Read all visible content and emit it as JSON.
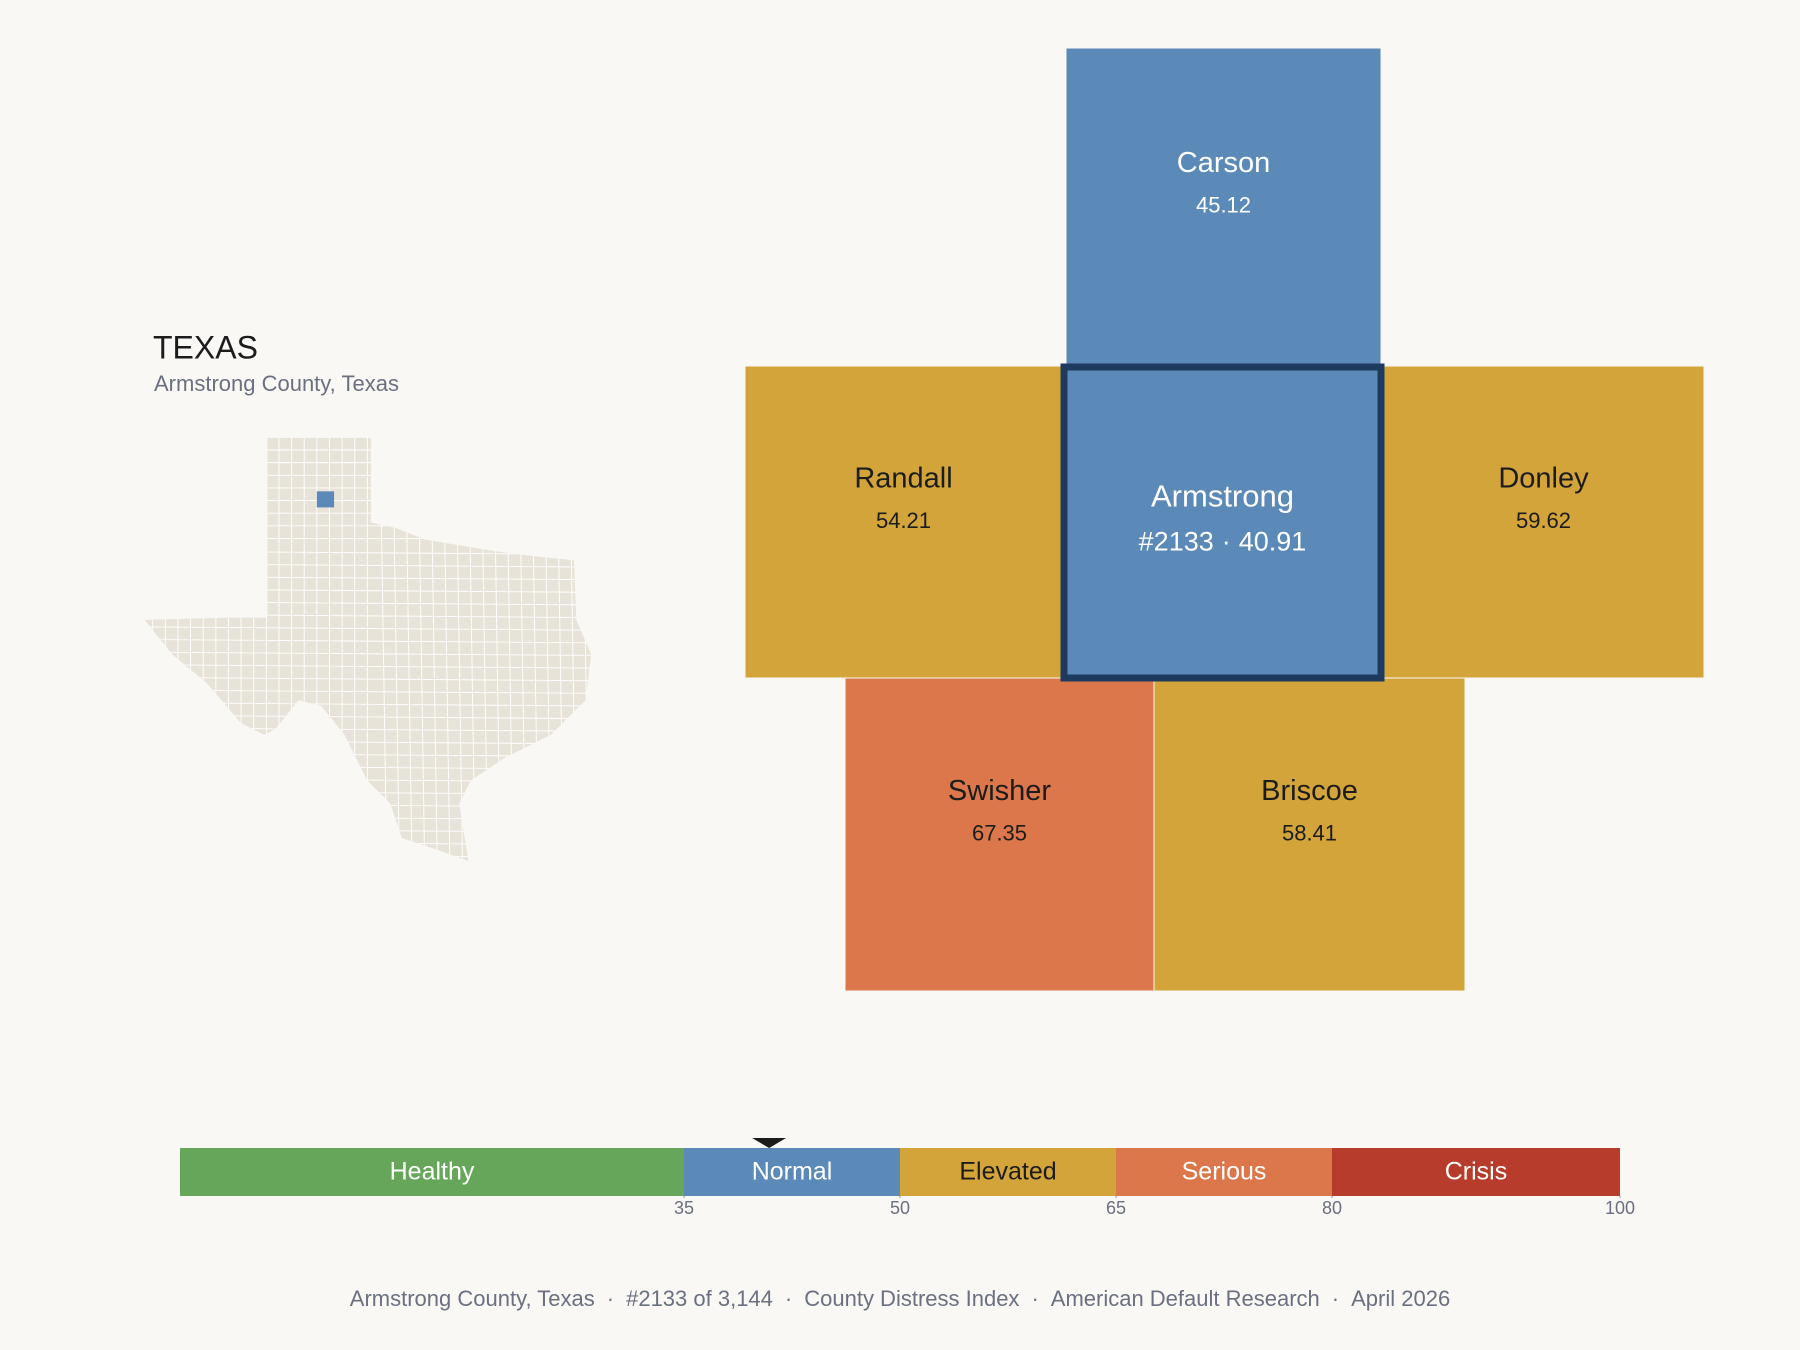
{
  "header": {
    "title": "TEXAS",
    "subtitle": "Armstrong County, Texas"
  },
  "counties": [
    {
      "name": "Carson",
      "value": 45.12,
      "color": "#5b89b8",
      "label_color": "#ffffff"
    },
    {
      "name": "Randall",
      "value": 54.21,
      "color": "#d3a43a",
      "label_color": "#1c1c1c"
    },
    {
      "name": "Armstrong",
      "rank": "#2133",
      "value": 40.91,
      "color": "#5b89b8",
      "label_color": "#ffffff",
      "border_color": "#1e3a5f"
    },
    {
      "name": "Donley",
      "value": 59.62,
      "color": "#d3a43a",
      "label_color": "#1c1c1c"
    },
    {
      "name": "Swisher",
      "value": 67.35,
      "color": "#db774a",
      "label_color": "#1c1c1c"
    },
    {
      "name": "Briscoe",
      "value": 58.41,
      "color": "#d3a43a",
      "label_color": "#1c1c1c"
    }
  ],
  "separator": "·",
  "scale": {
    "range": [
      0,
      100
    ],
    "ticks": [
      35,
      50,
      65,
      80,
      100
    ],
    "bands": [
      {
        "label": "Healthy",
        "color": "#66a65a",
        "label_color": "#ffffff"
      },
      {
        "label": "Normal",
        "color": "#5b89b8",
        "label_color": "#ffffff"
      },
      {
        "label": "Elevated",
        "color": "#d3a43a",
        "label_color": "#1c1c1c"
      },
      {
        "label": "Serious",
        "color": "#db774a",
        "label_color": "#ffffff"
      },
      {
        "label": "Crisis",
        "color": "#b83c2b",
        "label_color": "#ffffff"
      }
    ]
  },
  "footer": [
    "Armstrong County, Texas",
    "#2133 of 3,144",
    "County Distress Index",
    "American Default Research",
    "April 2026"
  ]
}
